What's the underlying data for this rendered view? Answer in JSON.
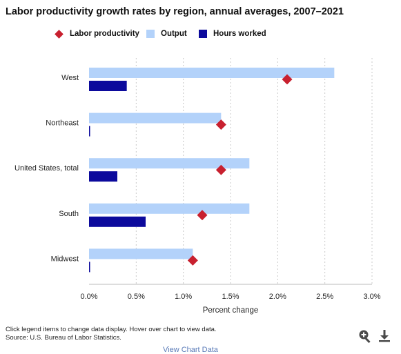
{
  "chart_data": {
    "type": "bar",
    "orientation": "horizontal",
    "title": "Labor productivity growth rates by region, annual averages, 2007–2021",
    "categories": [
      "West",
      "Northeast",
      "United States, total",
      "South",
      "Midwest"
    ],
    "series": [
      {
        "name": "Labor productivity",
        "kind": "marker",
        "values": [
          2.1,
          1.4,
          1.4,
          1.2,
          1.1
        ],
        "color": "#c8202f"
      },
      {
        "name": "Output",
        "kind": "bar",
        "values": [
          2.6,
          1.4,
          1.7,
          1.7,
          1.1
        ],
        "color": "#b3d2fa"
      },
      {
        "name": "Hours worked",
        "kind": "bar",
        "values": [
          0.4,
          0.01,
          0.3,
          0.6,
          0.01
        ],
        "color": "#0c0a9c"
      }
    ],
    "xlabel": "Percent change",
    "ylabel": "",
    "xlim": [
      0,
      3.0
    ],
    "x_ticks": [
      "0.0%",
      "0.5%",
      "1.0%",
      "1.5%",
      "2.0%",
      "2.5%",
      "3.0%"
    ],
    "grid": "vertical dotted",
    "legend_position": "top"
  },
  "legend": {
    "labor": "Labor productivity",
    "output": "Output",
    "hours": "Hours worked"
  },
  "footer": {
    "line1": "Click legend items to change data display. Hover over chart to view data.",
    "line2": "Source: U.S. Bureau of Labor Statistics."
  },
  "icons": {
    "zoom": "zoom-in-icon",
    "download": "download-icon"
  },
  "bottom_link": "View Chart Data"
}
